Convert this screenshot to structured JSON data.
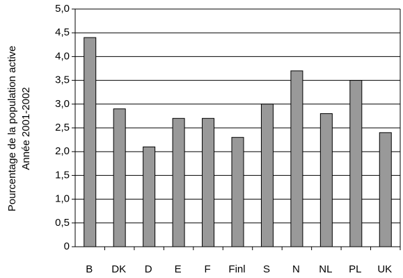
{
  "chart_data": {
    "type": "bar",
    "ylabel": [
      "Pourcentage de la population active",
      "Année 2001-2002"
    ],
    "categories": [
      "B",
      "DK",
      "D",
      "E",
      "F",
      "Finl",
      "S",
      "N",
      "NL",
      "PL",
      "UK"
    ],
    "values": [
      4.4,
      2.9,
      2.1,
      2.7,
      2.7,
      2.3,
      3.0,
      3.7,
      2.8,
      3.5,
      2.4
    ],
    "color": "#999999",
    "ylim": [
      0,
      5
    ],
    "yticks": [
      0,
      {
        "value": 0.5,
        "label": "0,5"
      },
      {
        "value": 1,
        "label": "1,0"
      },
      {
        "value": 1.5,
        "label": "1,5"
      },
      {
        "value": 2,
        "label": "2,0"
      },
      {
        "value": 2.5,
        "label": "2,5"
      },
      {
        "value": 3,
        "label": "3,0"
      },
      {
        "value": 3.5,
        "label": "3,5"
      },
      {
        "value": 4,
        "label": "4,0"
      },
      {
        "value": 4.5,
        "label": "4,5"
      },
      {
        "value": 5,
        "label": "5,0"
      }
    ],
    "grid": true
  }
}
